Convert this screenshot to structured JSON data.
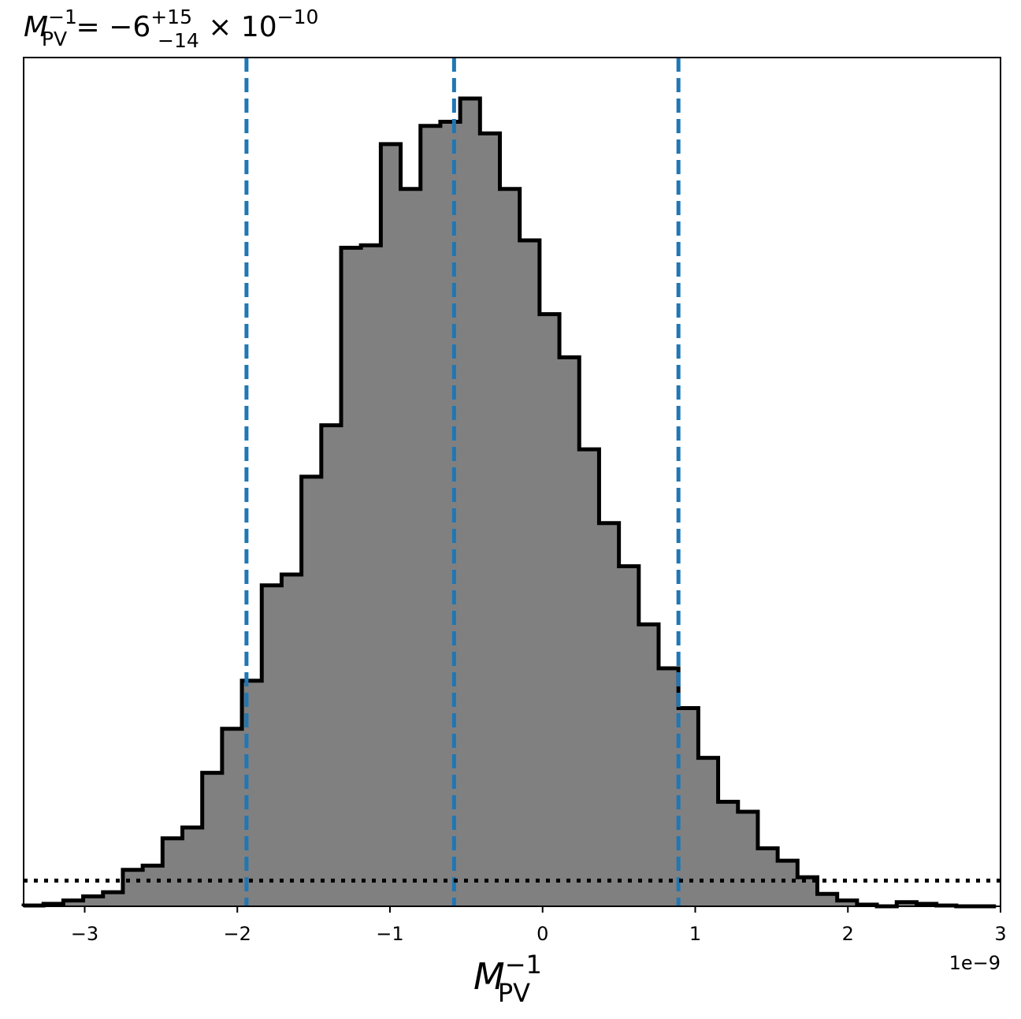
{
  "chart_data": {
    "type": "histogram",
    "title": {
      "base": "M",
      "base_sub": "PV",
      "base_sup": "−1",
      "equals": " = −6",
      "err_plus": "+15",
      "err_minus": "−14",
      "times": " × 10",
      "exp": "−10"
    },
    "xlabel": {
      "base": "M",
      "sub": "PV",
      "sup": "−1"
    },
    "offset_label": "1e−9",
    "xlim": [
      -3.4,
      3.0
    ],
    "ylim": [
      0,
      1.0
    ],
    "xticks": [
      {
        "value": -3,
        "label": "−3"
      },
      {
        "value": -2,
        "label": "−2"
      },
      {
        "value": -1,
        "label": "−1"
      },
      {
        "value": 0,
        "label": "0"
      },
      {
        "value": 1,
        "label": "1"
      },
      {
        "value": 2,
        "label": "2"
      },
      {
        "value": 3,
        "label": "3"
      }
    ],
    "bin_edges": [
      -3.4,
      -3.27,
      -3.14,
      -3.01,
      -2.88,
      -2.75,
      -2.62,
      -2.49,
      -2.36,
      -2.23,
      -2.1,
      -1.97,
      -1.84,
      -1.71,
      -1.58,
      -1.45,
      -1.32,
      -1.19,
      -1.06,
      -0.93,
      -0.8,
      -0.67,
      -0.54,
      -0.41,
      -0.28,
      -0.15,
      -0.02,
      0.11,
      0.24,
      0.37,
      0.5,
      0.63,
      0.76,
      0.89,
      1.02,
      1.15,
      1.28,
      1.41,
      1.54,
      1.67,
      1.8,
      1.93,
      2.06,
      2.19,
      2.32,
      2.45,
      2.58,
      2.71,
      2.84,
      2.97
    ],
    "counts": [
      0.001,
      0.003,
      0.007,
      0.012,
      0.017,
      0.044,
      0.049,
      0.082,
      0.095,
      0.161,
      0.214,
      0.272,
      0.387,
      0.4,
      0.518,
      0.58,
      0.794,
      0.797,
      0.919,
      0.865,
      0.941,
      0.946,
      0.974,
      0.932,
      0.865,
      0.803,
      0.714,
      0.662,
      0.551,
      0.462,
      0.41,
      0.34,
      0.287,
      0.239,
      0.179,
      0.126,
      0.114,
      0.07,
      0.055,
      0.035,
      0.015,
      0.007,
      0.002,
      0.0,
      0.005,
      0.003,
      0.001,
      0.0,
      0.0
    ],
    "vlines": [
      -1.94,
      -0.58,
      0.89
    ],
    "hline": 0.031,
    "colors": {
      "fill": "#808080",
      "edge": "#000000",
      "vline": "#1f77b4",
      "hline": "#000000"
    }
  }
}
